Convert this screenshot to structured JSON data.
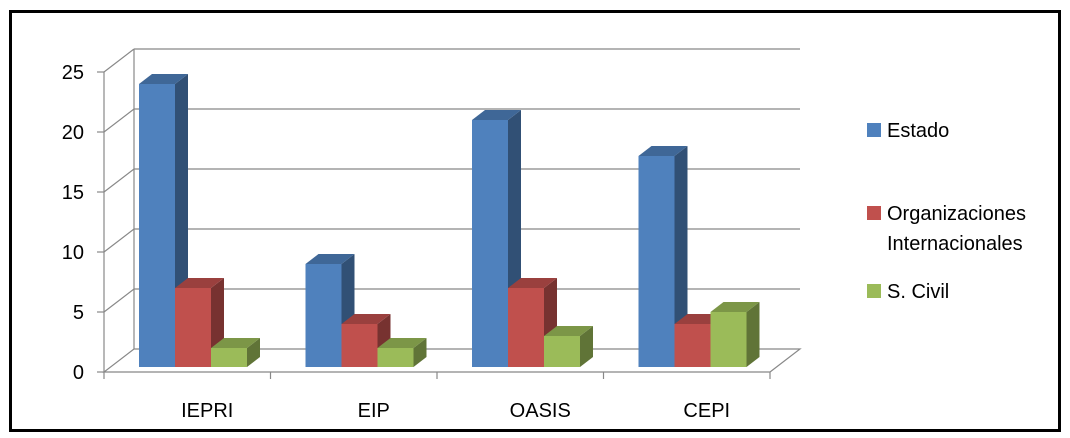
{
  "chart_data": {
    "type": "bar",
    "title": "",
    "xlabel": "",
    "ylabel": "",
    "categories": [
      "IEPRI",
      "EIP",
      "OASIS",
      "CEPI"
    ],
    "series": [
      {
        "name": "Estado",
        "values": [
          24,
          9,
          21,
          18
        ],
        "color": "#4F81BD"
      },
      {
        "name": "Organizaciones Internacionales",
        "values": [
          7,
          4,
          7,
          4
        ],
        "color": "#C0504D"
      },
      {
        "name": "S. Civil",
        "values": [
          2,
          2,
          3,
          5
        ],
        "color": "#9BBB59"
      }
    ],
    "ylim": [
      0,
      25
    ],
    "yticks": [
      "0",
      "5",
      "10",
      "15",
      "20",
      "25"
    ],
    "grid": true,
    "style": "3d-clustered-column",
    "legend_position": "right",
    "legend_lines": [
      [
        "Estado"
      ],
      [
        "Organizaciones",
        "Internacionales"
      ],
      [
        "S. Civil"
      ]
    ]
  }
}
